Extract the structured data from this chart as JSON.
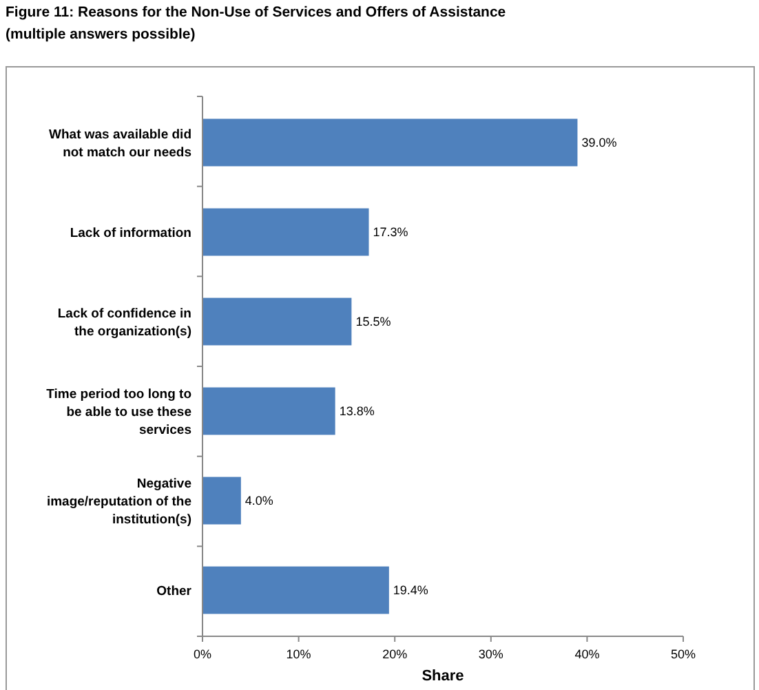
{
  "chart_data": {
    "type": "bar",
    "orientation": "horizontal",
    "title": "Figure 11: Reasons for the Non-Use of Services and Offers of Assistance",
    "subtitle": "(multiple answers possible)",
    "xlabel": "Share",
    "categories": [
      "What was available did not match our needs",
      "Lack of information",
      "Lack of confidence in the organization(s)",
      "Time period too long to be able to use these services",
      "Negative image/reputation of the institution(s)",
      "Other"
    ],
    "values": [
      39.0,
      17.3,
      15.5,
      13.8,
      4.0,
      19.4
    ],
    "value_labels": [
      "39.0%",
      "17.3%",
      "15.5%",
      "13.8%",
      "4.0%",
      "19.4%"
    ],
    "color": "#4f81bd",
    "xlim": [
      0,
      50
    ],
    "xticks": [
      {
        "value": 0,
        "label": "0%"
      },
      {
        "value": 10,
        "label": "10%"
      },
      {
        "value": 20,
        "label": "20%"
      },
      {
        "value": 30,
        "label": "30%"
      },
      {
        "value": 40,
        "label": "40%"
      },
      {
        "value": 50,
        "label": "50%"
      }
    ],
    "grid": false
  }
}
